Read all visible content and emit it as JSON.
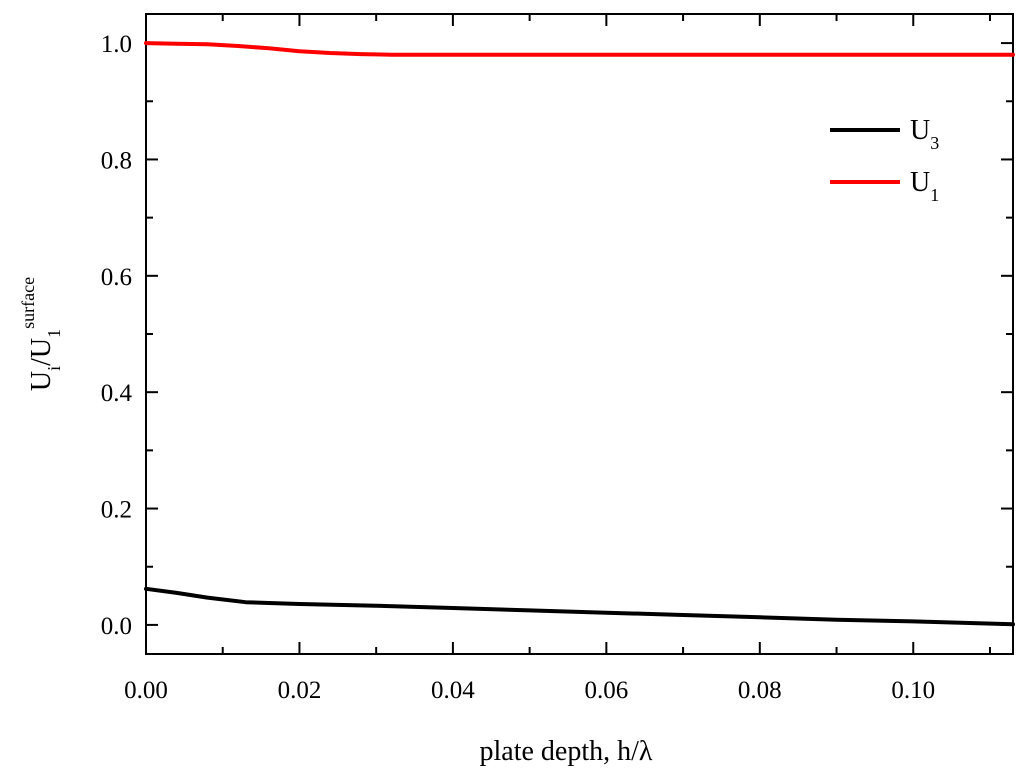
{
  "chart_data": {
    "type": "line",
    "xlabel": "plate depth, h/λ",
    "ylabel": {
      "main1": "U",
      "sub1": "i",
      "main2": "/U",
      "sub2": "1",
      "sup2": "surface"
    },
    "xlim": [
      0.0,
      0.113
    ],
    "ylim": [
      -0.05,
      1.05
    ],
    "xticks": [
      "0.00",
      "0.02",
      "0.04",
      "0.06",
      "0.08",
      "0.10"
    ],
    "xtick_values": [
      0.0,
      0.02,
      0.04,
      0.06,
      0.08,
      0.1
    ],
    "yticks": [
      "0.0",
      "0.2",
      "0.4",
      "0.6",
      "0.8",
      "1.0"
    ],
    "ytick_values": [
      0.0,
      0.2,
      0.4,
      0.6,
      0.8,
      1.0
    ],
    "grid": false,
    "legend_placement": "top-right",
    "series": [
      {
        "name": "U",
        "name_sub": "3",
        "color": "#000000",
        "x": [
          0.0,
          0.004,
          0.008,
          0.013,
          0.02,
          0.03,
          0.04,
          0.05,
          0.06,
          0.07,
          0.08,
          0.09,
          0.1,
          0.113
        ],
        "y": [
          0.062,
          0.055,
          0.047,
          0.039,
          0.036,
          0.033,
          0.029,
          0.025,
          0.021,
          0.017,
          0.013,
          0.009,
          0.006,
          0.001
        ]
      },
      {
        "name": "U",
        "name_sub": "1",
        "color": "#ff0000",
        "x": [
          0.0,
          0.004,
          0.008,
          0.012,
          0.016,
          0.02,
          0.024,
          0.028,
          0.032,
          0.04,
          0.06,
          0.08,
          0.1,
          0.113
        ],
        "y": [
          1.0,
          0.999,
          0.998,
          0.995,
          0.991,
          0.986,
          0.983,
          0.981,
          0.98,
          0.98,
          0.98,
          0.98,
          0.98,
          0.98
        ]
      }
    ]
  }
}
